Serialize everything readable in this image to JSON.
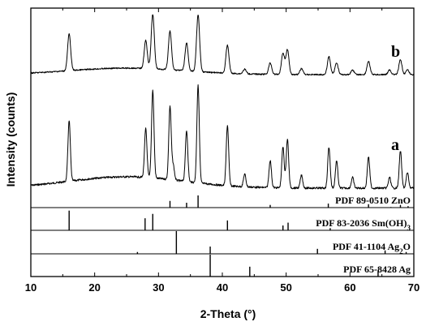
{
  "chart_data": {
    "type": "line",
    "xlabel": "2-Theta (°)",
    "ylabel": "Intensity (counts)",
    "xlim": [
      10,
      70
    ],
    "xticks": [
      "10",
      "20",
      "30",
      "40",
      "50",
      "60",
      "70"
    ],
    "series": [
      {
        "name": "a",
        "peaks": [
          {
            "x": 16.0,
            "h": 0.62
          },
          {
            "x": 28.0,
            "h": 0.5
          },
          {
            "x": 29.1,
            "h": 0.9
          },
          {
            "x": 31.8,
            "h": 0.75
          },
          {
            "x": 32.3,
            "h": 0.15
          },
          {
            "x": 34.4,
            "h": 0.52
          },
          {
            "x": 36.2,
            "h": 1.0
          },
          {
            "x": 40.8,
            "h": 0.62
          },
          {
            "x": 43.5,
            "h": 0.13
          },
          {
            "x": 47.5,
            "h": 0.28
          },
          {
            "x": 49.5,
            "h": 0.42
          },
          {
            "x": 50.2,
            "h": 0.5
          },
          {
            "x": 52.4,
            "h": 0.13
          },
          {
            "x": 56.7,
            "h": 0.42
          },
          {
            "x": 57.9,
            "h": 0.28
          },
          {
            "x": 60.4,
            "h": 0.11
          },
          {
            "x": 62.9,
            "h": 0.32
          },
          {
            "x": 66.2,
            "h": 0.11
          },
          {
            "x": 67.9,
            "h": 0.38
          },
          {
            "x": 69.0,
            "h": 0.16
          }
        ]
      },
      {
        "name": "b",
        "peaks": [
          {
            "x": 16.0,
            "h": 0.55
          },
          {
            "x": 28.0,
            "h": 0.42
          },
          {
            "x": 29.1,
            "h": 0.82
          },
          {
            "x": 31.8,
            "h": 0.58
          },
          {
            "x": 34.4,
            "h": 0.42
          },
          {
            "x": 36.2,
            "h": 0.85
          },
          {
            "x": 40.8,
            "h": 0.42
          },
          {
            "x": 43.5,
            "h": 0.07
          },
          {
            "x": 47.5,
            "h": 0.17
          },
          {
            "x": 49.5,
            "h": 0.32
          },
          {
            "x": 50.2,
            "h": 0.37
          },
          {
            "x": 52.4,
            "h": 0.09
          },
          {
            "x": 56.7,
            "h": 0.27
          },
          {
            "x": 57.9,
            "h": 0.18
          },
          {
            "x": 60.4,
            "h": 0.07
          },
          {
            "x": 62.9,
            "h": 0.2
          },
          {
            "x": 66.2,
            "h": 0.07
          },
          {
            "x": 67.9,
            "h": 0.22
          },
          {
            "x": 69.0,
            "h": 0.07
          }
        ]
      }
    ],
    "reference_patterns": [
      {
        "label": "PDF 89-0510 ZnO",
        "lines": [
          {
            "x": 31.8,
            "h": 0.55
          },
          {
            "x": 34.4,
            "h": 0.4
          },
          {
            "x": 36.2,
            "h": 1.0
          },
          {
            "x": 47.5,
            "h": 0.22
          },
          {
            "x": 56.6,
            "h": 0.33
          },
          {
            "x": 62.9,
            "h": 0.28
          },
          {
            "x": 66.4,
            "h": 0.05
          },
          {
            "x": 67.9,
            "h": 0.22
          },
          {
            "x": 69.1,
            "h": 0.12
          }
        ]
      },
      {
        "label_main": "PDF 83-2036 Sm(OH)",
        "label_sub": "3",
        "lines": [
          {
            "x": 16.0,
            "h": 0.9
          },
          {
            "x": 27.9,
            "h": 0.55
          },
          {
            "x": 29.1,
            "h": 0.75
          },
          {
            "x": 40.8,
            "h": 0.45
          },
          {
            "x": 49.5,
            "h": 0.22
          },
          {
            "x": 50.3,
            "h": 0.35
          },
          {
            "x": 56.9,
            "h": 0.1
          }
        ]
      },
      {
        "label_main": "PDF 41-1104 Ag",
        "label_sub": "2",
        "label_tail": "O",
        "lines": [
          {
            "x": 26.7,
            "h": 0.08
          },
          {
            "x": 32.8,
            "h": 1.0
          },
          {
            "x": 38.1,
            "h": 0.32
          },
          {
            "x": 54.9,
            "h": 0.22
          },
          {
            "x": 65.5,
            "h": 0.15
          },
          {
            "x": 68.8,
            "h": 0.08
          }
        ]
      },
      {
        "label": "PDF 65-8428 Ag",
        "lines": [
          {
            "x": 38.1,
            "h": 1.0
          },
          {
            "x": 44.3,
            "h": 0.45
          },
          {
            "x": 64.4,
            "h": 0.25
          }
        ]
      }
    ]
  }
}
